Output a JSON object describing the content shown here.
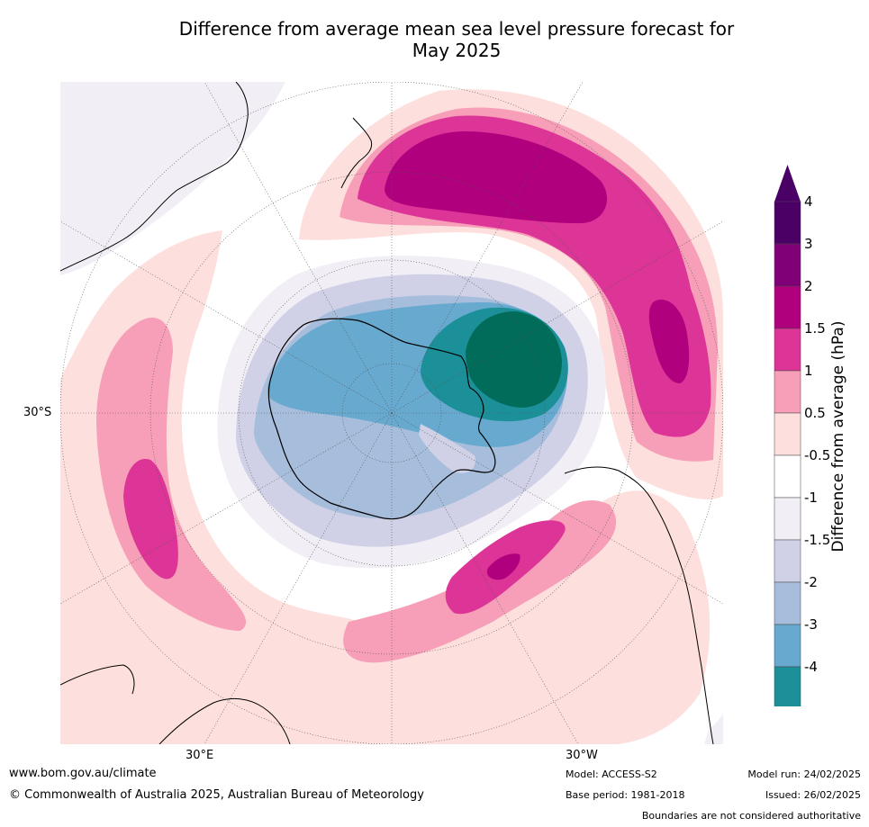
{
  "title": {
    "line1": "Difference from average mean sea level pressure forecast for",
    "line2": "May 2025"
  },
  "axis_labels": {
    "lat_30s": "30°S",
    "lon_30e": "30°E",
    "lon_30w": "30°W"
  },
  "colorbar": {
    "label": "Difference from average (hPa)",
    "ticks": [
      "4",
      "3",
      "2",
      "1.5",
      "1",
      "0.5",
      "-0.5",
      "-1",
      "-1.5",
      "-2",
      "-3",
      "-4"
    ],
    "colors": [
      "#4b0066",
      "#7f0077",
      "#b0007e",
      "#dd3497",
      "#f79fb8",
      "#fde0dd",
      "#ffffff",
      "#f1eef5",
      "#d0d1e6",
      "#a6bddb",
      "#67a9cf",
      "#1c9099",
      "#016c59"
    ]
  },
  "footer": {
    "website": "www.bom.gov.au/climate",
    "copyright": "© Commonwealth of Australia 2025, Australian Bureau of Meteorology",
    "model": "Model: ACCESS-S2",
    "base_period": "Base period: 1981-2018",
    "model_run": "Model run: 24/02/2025",
    "issued": "Issued: 26/02/2025",
    "disclaimer": "Boundaries are not considered authoritative"
  }
}
